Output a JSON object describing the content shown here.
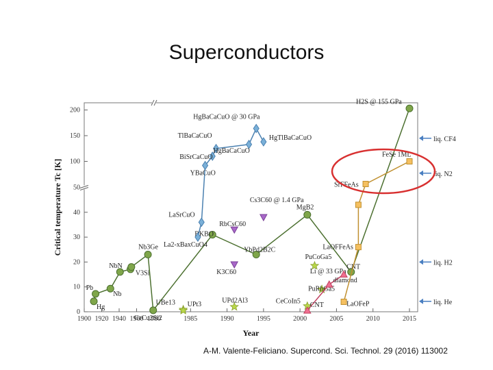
{
  "slide": {
    "title": "Superconductors",
    "citation": "A-M. Valente-Feliciano. Supercond. Sci. Technol. 29 (2016) 113002"
  },
  "chart_data": {
    "type": "scatter",
    "xlabel": "Year",
    "ylabel": "Critical temperature Tc [K]",
    "x_ticks": [
      "1900",
      "1920",
      "1940",
      "1960",
      "1980",
      "1985",
      "1990",
      "1995",
      "2000",
      "2005",
      "2010",
      "2015"
    ],
    "y_ticks_lower": [
      "0",
      "10",
      "20",
      "30",
      "40",
      "50"
    ],
    "y_ticks_upper": [
      "100",
      "150",
      "200"
    ],
    "reference_lines": [
      {
        "label": "liq. He",
        "y": 4.2
      },
      {
        "label": "liq. H2",
        "y": 20
      },
      {
        "label": "liq. N2",
        "y": 77
      },
      {
        "label": "liq. CF4",
        "y": 145
      }
    ],
    "series": [
      {
        "color": "#7fa64a",
        "marker": "circle",
        "points": [
          {
            "label": "Hg",
            "x": 1911,
            "y": 4.2
          },
          {
            "label": "Pb",
            "x": 1913,
            "y": 7.2
          },
          {
            "label": "Nb",
            "x": 1930,
            "y": 9.3
          },
          {
            "label": "NbN",
            "x": 1941,
            "y": 16
          },
          {
            "label": "",
            "x": 1953,
            "y": 17.1
          },
          {
            "label": "V3Si",
            "x": 1954,
            "y": 18
          },
          {
            "label": "Nb3Ge",
            "x": 1973,
            "y": 23
          },
          {
            "label": "CeCu2Si2",
            "x": 1979,
            "y": 0.6
          },
          {
            "label": "BKBO",
            "x": 1988,
            "y": 31
          },
          {
            "label": "YbPd2B2C",
            "x": 1994,
            "y": 23
          },
          {
            "label": "MgB2",
            "x": 2001,
            "y": 39
          },
          {
            "label": "Li @ 33 GPa",
            "x": 2007,
            "y": 16
          },
          {
            "label": "H2S @ 155 GPa",
            "x": 2015,
            "y": 203
          }
        ]
      },
      {
        "color": "#7ab0d8",
        "marker": "diamond",
        "points": [
          {
            "label": "La2-xBaxCuO4",
            "x": 1986,
            "y": 30
          },
          {
            "label": "LaSrCuO",
            "x": 1986.5,
            "y": 36
          },
          {
            "label": "YBaCuO",
            "x": 1987,
            "y": 92
          },
          {
            "label": "BiSrCaCuO",
            "x": 1988,
            "y": 110
          },
          {
            "label": "TlBaCaCuO",
            "x": 1988.5,
            "y": 125
          },
          {
            "label": "HgBaCaCuO",
            "x": 1993,
            "y": 133
          },
          {
            "label": "HgBaCaCuO @ 30 GPa",
            "x": 1994,
            "y": 164
          },
          {
            "label": "HgTlBaCaCuO",
            "x": 1995,
            "y": 138
          }
        ]
      },
      {
        "color": "#a868c8",
        "marker": "triangle-down",
        "points": [
          {
            "label": "K3C60",
            "x": 1991,
            "y": 19
          },
          {
            "label": "RbCsC60",
            "x": 1991,
            "y": 33
          },
          {
            "label": "Cs3C60 @ 1.4 GPa",
            "x": 1995,
            "y": 38
          }
        ]
      },
      {
        "color": "#b9d84a",
        "marker": "star",
        "points": [
          {
            "label": "UBe13",
            "x": 1984,
            "y": 0.9
          },
          {
            "label": "UPt3",
            "x": 1984,
            "y": 0.5
          },
          {
            "label": "UPd2Al3",
            "x": 1991,
            "y": 2
          },
          {
            "label": "CeCoIn5",
            "x": 2001,
            "y": 2.3
          },
          {
            "label": "PuCoGa5",
            "x": 2002,
            "y": 18.5
          },
          {
            "label": "PuRhGa5",
            "x": 2003,
            "y": 9
          }
        ]
      },
      {
        "color": "#f07090",
        "marker": "triangle",
        "points": [
          {
            "label": "CNT",
            "x": 2001,
            "y": 0.5
          },
          {
            "label": "diamond",
            "x": 2004,
            "y": 11
          },
          {
            "label": "CNT",
            "x": 2006,
            "y": 15
          }
        ]
      },
      {
        "color": "#f5c060",
        "marker": "square",
        "points": [
          {
            "label": "LaOFeP",
            "x": 2006,
            "y": 4
          },
          {
            "label": "LaOFFeAs",
            "x": 2008,
            "y": 26
          },
          {
            "label": "",
            "x": 2008,
            "y": 43
          },
          {
            "label": "SrFFeAs",
            "x": 2009,
            "y": 56
          },
          {
            "label": "FeSe 1ML",
            "x": 2015,
            "y": 100
          }
        ]
      }
    ]
  }
}
